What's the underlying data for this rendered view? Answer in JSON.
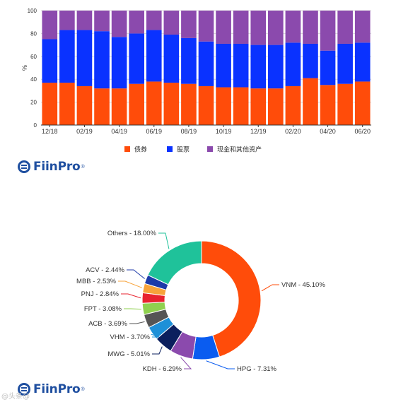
{
  "chart_data": [
    {
      "type": "bar",
      "stacked": true,
      "ylabel": "%",
      "ylim": [
        0,
        100
      ],
      "yticks": [
        "0",
        "20",
        "40",
        "60",
        "80",
        "100"
      ],
      "categories": [
        "12/18",
        "01/19",
        "02/19",
        "03/19",
        "04/19",
        "05/19",
        "06/19",
        "07/19",
        "08/19",
        "09/19",
        "10/19",
        "11/19",
        "12/19",
        "01/20",
        "02/20",
        "03/20",
        "04/20",
        "05/20",
        "06/20"
      ],
      "xtick_labels": [
        "12/18",
        "02/19",
        "04/19",
        "06/19",
        "08/19",
        "10/19",
        "12/19",
        "02/20",
        "04/20",
        "06/20"
      ],
      "legend_position": "bottom",
      "series": [
        {
          "name": "债券",
          "color": "#ff4c0a",
          "values": [
            37,
            37,
            34,
            32,
            32,
            36,
            38,
            37,
            36,
            34,
            33,
            33,
            32,
            32,
            34,
            41,
            35,
            36,
            38
          ]
        },
        {
          "name": "股票",
          "color": "#0a32ff",
          "values": [
            38,
            46,
            49,
            50,
            45,
            44,
            45,
            42,
            40,
            39,
            38,
            38,
            38,
            38,
            38,
            30,
            30,
            35,
            34
          ]
        },
        {
          "name": "现金和其他资产",
          "color": "#8b4aad",
          "values": [
            25,
            17,
            17,
            18,
            23,
            20,
            17,
            21,
            24,
            27,
            29,
            29,
            30,
            30,
            28,
            29,
            35,
            29,
            28
          ]
        }
      ]
    },
    {
      "type": "pie",
      "donut": true,
      "slices": [
        {
          "label": "VNM - 45.10%",
          "value": 45.1,
          "color": "#ff4c0a",
          "side": "right"
        },
        {
          "label": "HPG - 7.31%",
          "value": 7.31,
          "color": "#0a5cf0",
          "side": "right"
        },
        {
          "label": "KDH - 6.29%",
          "value": 6.29,
          "color": "#8b4aad",
          "side": "left"
        },
        {
          "label": "MWG - 5.01%",
          "value": 5.01,
          "color": "#0b1f5e",
          "side": "left"
        },
        {
          "label": "VHM - 3.70%",
          "value": 3.7,
          "color": "#1e90d8",
          "side": "left"
        },
        {
          "label": "ACB - 3.69%",
          "value": 3.69,
          "color": "#555555",
          "side": "left"
        },
        {
          "label": "FPT - 3.08%",
          "value": 3.08,
          "color": "#8fd14f",
          "side": "left"
        },
        {
          "label": "PNJ - 2.84%",
          "value": 2.84,
          "color": "#e8232f",
          "side": "left"
        },
        {
          "label": "MBB - 2.53%",
          "value": 2.53,
          "color": "#f7a33b",
          "side": "left"
        },
        {
          "label": "ACV - 2.44%",
          "value": 2.44,
          "color": "#1c3aa9",
          "side": "left"
        },
        {
          "label": "Others - 18.00%",
          "value": 18.0,
          "color": "#1fc29a",
          "side": "left"
        }
      ]
    }
  ],
  "branding": {
    "logo_text": "FiinPro",
    "logo_reg": "®",
    "watermark": "@头条@"
  },
  "colors": {
    "logo_blue": "#1f4fa0",
    "grid": "#d9d9d9"
  }
}
